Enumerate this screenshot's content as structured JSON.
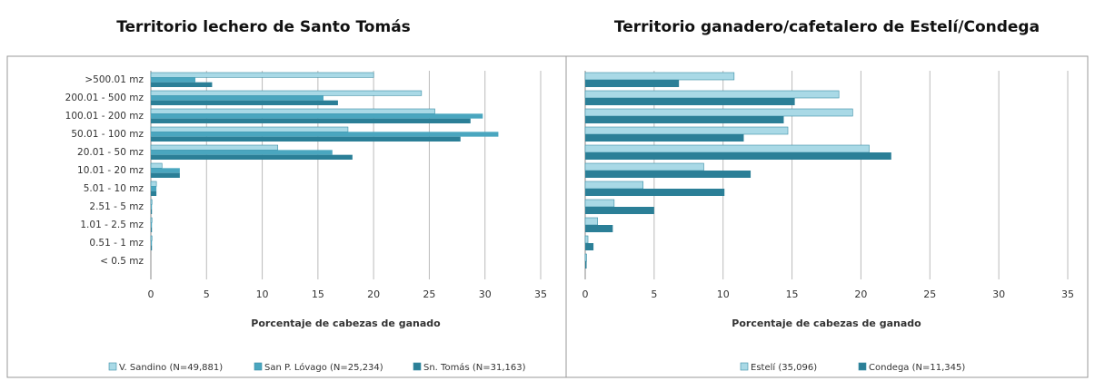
{
  "chart_data": [
    {
      "type": "bar",
      "orientation": "horizontal",
      "title": "Territorio lechero de Santo Tomás",
      "xlabel": "Porcentaje de cabezas de ganado",
      "categories": [
        ">500.01 mz",
        "200.01 - 500 mz",
        "100.01 - 200 mz",
        "50.01 - 100 mz",
        "20.01 - 50 mz",
        "10.01 - 20 mz",
        "5.01 - 10 mz",
        "2.51 - 5 mz",
        "1.01 - 2.5 mz",
        "0.51 - 1 mz",
        "< 0.5 mz"
      ],
      "series": [
        {
          "name": "V. Sandino (N=49,881)",
          "color": "#a9d9e6",
          "values": [
            20,
            24.3,
            25.5,
            17.7,
            11.4,
            1,
            0.5,
            0.1,
            0.1,
            0.1,
            0
          ]
        },
        {
          "name": "San P. Lóvago (N=25,234)",
          "color": "#4aa6bf",
          "values": [
            4,
            15.5,
            29.8,
            31.2,
            16.3,
            2.6,
            0.5,
            0.1,
            0.1,
            0.1,
            0
          ]
        },
        {
          "name": "Sn. Tomás (N=31,163)",
          "color": "#2b7f97",
          "values": [
            5.5,
            16.8,
            28.7,
            27.8,
            18.1,
            2.6,
            0.5,
            0.1,
            0.1,
            0.1,
            0
          ]
        }
      ],
      "xlim": [
        0,
        35
      ],
      "xticks": [
        0,
        5,
        10,
        15,
        20,
        25,
        30,
        35
      ],
      "grid": true,
      "legend": "bottom"
    },
    {
      "type": "bar",
      "orientation": "horizontal",
      "title": "Territorio ganadero/cafetalero de Estelí/Condega",
      "xlabel": "Porcentaje de cabezas de ganado",
      "categories": [
        ">500.01 mz",
        "200.01 - 500 mz",
        "100.01 - 200 mz",
        "50.01 - 100 mz",
        "20.01 - 50 mz",
        "10.01 - 20 mz",
        "5.01 - 10 mz",
        "2.51 - 5 mz",
        "1.01 - 2.5 mz",
        "0.51 - 1 mz",
        "< 0.5 mz"
      ],
      "series": [
        {
          "name": "Estelí (35,096)",
          "color": "#a9d9e6",
          "values": [
            10.8,
            18.4,
            19.4,
            14.7,
            20.6,
            8.6,
            4.2,
            2.1,
            0.9,
            0.2,
            0.1
          ]
        },
        {
          "name": "Condega (N=11,345)",
          "color": "#2b7f97",
          "values": [
            6.8,
            15.2,
            14.4,
            11.5,
            22.2,
            12,
            10.1,
            5,
            2,
            0.6,
            0.1
          ]
        }
      ],
      "xlim": [
        0,
        35
      ],
      "xticks": [
        0,
        5,
        10,
        15,
        20,
        25,
        30,
        35
      ],
      "grid": true,
      "legend": "bottom"
    }
  ]
}
